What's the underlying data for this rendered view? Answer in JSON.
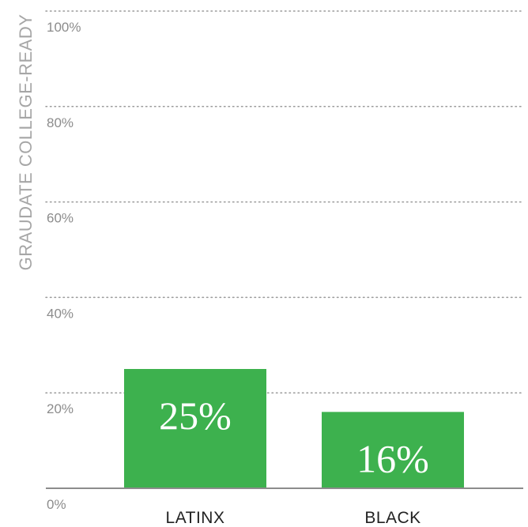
{
  "chart_data": {
    "type": "bar",
    "categories": [
      "LATINX",
      "BLACK"
    ],
    "values": [
      25,
      16
    ],
    "data_labels": [
      "25%",
      "16%"
    ],
    "title": "",
    "xlabel": "",
    "ylabel": "GRAUDATE COLLEGE-READY",
    "ylim": [
      0,
      100
    ],
    "ticks": [
      0,
      20,
      40,
      60,
      80,
      100
    ],
    "tick_labels": [
      "0%",
      "20%",
      "40%",
      "60%",
      "80%",
      "100%"
    ],
    "grid": true,
    "bar_color": "#3db14e"
  }
}
